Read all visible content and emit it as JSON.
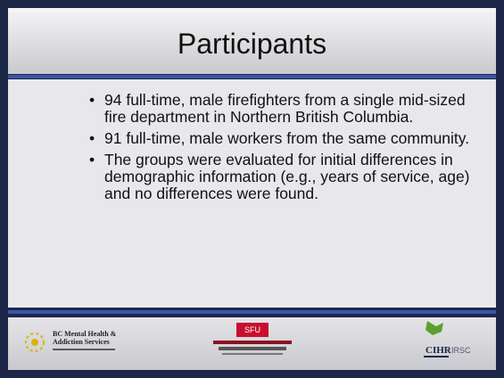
{
  "title": "Participants",
  "bullets": [
    "94 full-time, male firefighters from a single mid-sized fire department in Northern British Columbia.",
    "91 full-time, male workers from the same community.",
    "The groups were evaluated for initial differences in demographic information (e.g., years of service, age) and no differences were found."
  ],
  "logos": {
    "bcmh": "BC Mental Health & Addiction Services",
    "sfu": "SFU",
    "cihr": "CIHR",
    "irsc": "IRSC"
  }
}
